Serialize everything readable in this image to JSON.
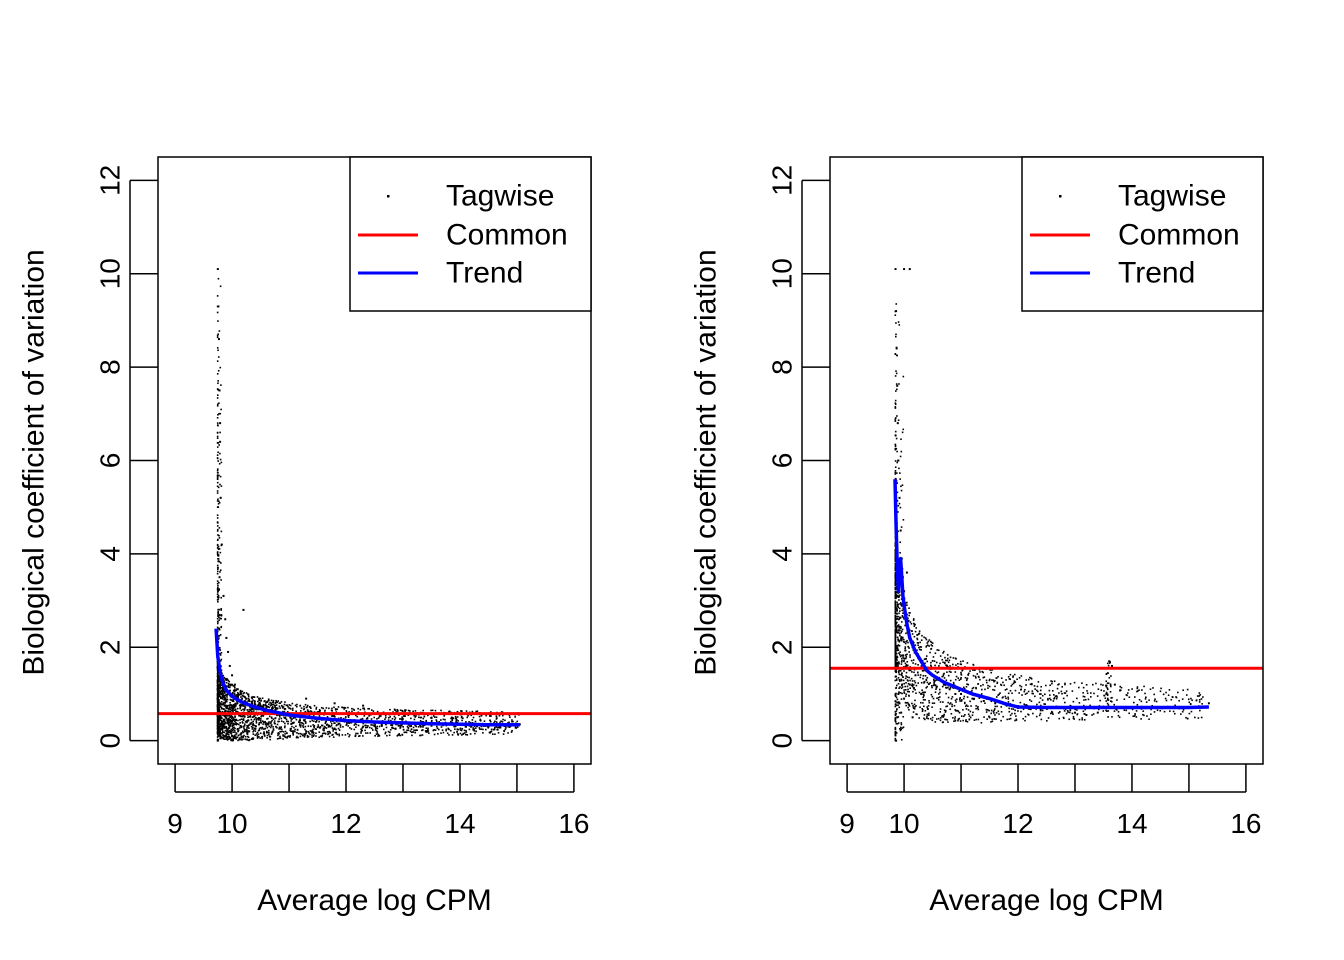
{
  "chart_data": [
    {
      "type": "scatter",
      "xlabel": "Average log CPM",
      "ylabel": "Biological coefficient of variation",
      "xlim": [
        8.7,
        16.3
      ],
      "ylim": [
        -0.5,
        12.5
      ],
      "xticks": [
        "9",
        "10",
        "12",
        "14",
        "16"
      ],
      "xtick_values": [
        9,
        10,
        12,
        14,
        16
      ],
      "xticks_minor": [
        11,
        13,
        15
      ],
      "yticks": [
        "0",
        "2",
        "4",
        "6",
        "8",
        "10",
        "12"
      ],
      "ytick_values": [
        0,
        2,
        4,
        6,
        8,
        10,
        12
      ],
      "legend": {
        "placement": "top-right",
        "entries": [
          {
            "label": "Tagwise",
            "kind": "point",
            "color": "#000000"
          },
          {
            "label": "Common",
            "kind": "line",
            "color": "#ff0000"
          },
          {
            "label": "Trend",
            "kind": "line",
            "color": "#0000ff"
          }
        ]
      },
      "series": [
        {
          "name": "Tagwise",
          "kind": "points",
          "color": "#000000",
          "x": [
            9.75,
            9.76,
            9.77,
            9.78,
            9.79,
            9.8,
            9.82,
            9.85,
            9.88,
            9.9,
            9.93,
            9.96,
            10.0,
            10.05,
            10.1,
            10.15,
            10.2,
            10.25,
            10.3,
            10.35,
            10.4,
            10.45,
            10.5,
            10.55,
            10.6,
            10.7,
            10.8,
            10.9,
            11.0,
            11.1,
            11.2,
            11.3,
            11.45,
            11.6,
            11.8,
            12.0,
            12.2,
            12.3,
            12.5,
            12.7,
            12.9,
            13.1,
            13.3,
            13.5,
            13.7,
            13.9,
            14.1,
            14.3,
            14.5,
            14.7,
            14.9,
            15.05,
            9.75,
            9.76,
            9.78,
            9.8,
            9.84,
            9.9,
            9.95,
            10.0,
            10.1,
            10.2,
            10.3,
            10.2,
            11.3,
            11.8,
            12.3,
            9.76,
            9.77,
            9.78,
            9.79
          ],
          "y": [
            10.1,
            9.3,
            8.6,
            7.5,
            6.4,
            5.2,
            4.2,
            3.1,
            2.6,
            2.2,
            1.9,
            1.6,
            1.4,
            1.2,
            1.1,
            1.0,
            0.95,
            0.9,
            0.85,
            0.8,
            0.78,
            0.75,
            0.72,
            0.7,
            0.68,
            0.65,
            0.6,
            0.58,
            0.55,
            0.52,
            0.5,
            0.9,
            0.48,
            0.45,
            0.8,
            0.42,
            0.4,
            0.75,
            0.38,
            0.35,
            0.36,
            0.34,
            0.33,
            0.32,
            0.33,
            0.31,
            0.3,
            0.31,
            0.3,
            0.3,
            0.32,
            0.35,
            0.0,
            0.1,
            0.2,
            0.05,
            0.3,
            0.15,
            0.2,
            0.1,
            0.25,
            0.3,
            0.2,
            2.8,
            0.2,
            0.25,
            0.3,
            1.2,
            2.4,
            3.5,
            6.8
          ]
        },
        {
          "name": "Common",
          "kind": "hline",
          "color": "#ff0000",
          "y": 0.58
        },
        {
          "name": "Trend",
          "kind": "line",
          "color": "#0000ff",
          "x": [
            9.72,
            9.75,
            9.8,
            9.85,
            9.9,
            10.0,
            10.1,
            10.2,
            10.4,
            10.6,
            10.8,
            11.0,
            11.5,
            12.0,
            12.5,
            13.0,
            13.5,
            14.0,
            14.5,
            15.05
          ],
          "y": [
            2.4,
            1.8,
            1.4,
            1.2,
            1.08,
            0.95,
            0.87,
            0.81,
            0.72,
            0.65,
            0.6,
            0.55,
            0.48,
            0.43,
            0.4,
            0.38,
            0.36,
            0.35,
            0.34,
            0.34
          ]
        }
      ]
    },
    {
      "type": "scatter",
      "xlabel": "Average log CPM",
      "ylabel": "Biological coefficient of variation",
      "xlim": [
        8.7,
        16.3
      ],
      "ylim": [
        -0.5,
        12.5
      ],
      "xticks": [
        "9",
        "10",
        "12",
        "14",
        "16"
      ],
      "xtick_values": [
        9,
        10,
        12,
        14,
        16
      ],
      "xticks_minor": [
        11,
        13,
        15
      ],
      "yticks": [
        "0",
        "2",
        "4",
        "6",
        "8",
        "10",
        "12"
      ],
      "ytick_values": [
        0,
        2,
        4,
        6,
        8,
        10,
        12
      ],
      "legend": {
        "placement": "top-right",
        "entries": [
          {
            "label": "Tagwise",
            "kind": "point",
            "color": "#000000"
          },
          {
            "label": "Common",
            "kind": "line",
            "color": "#ff0000"
          },
          {
            "label": "Trend",
            "kind": "line",
            "color": "#0000ff"
          }
        ]
      },
      "series": [
        {
          "name": "Tagwise",
          "kind": "points",
          "color": "#000000",
          "x": [
            9.85,
            9.86,
            9.87,
            9.88,
            9.89,
            9.9,
            9.92,
            9.94,
            9.96,
            9.98,
            10.0,
            10.02,
            10.05,
            10.08,
            10.1,
            10.15,
            10.2,
            10.25,
            10.3,
            10.35,
            10.4,
            10.5,
            10.6,
            10.7,
            10.8,
            10.9,
            11.0,
            11.2,
            11.4,
            11.6,
            11.8,
            12.0,
            12.2,
            12.4,
            12.6,
            12.8,
            13.0,
            13.2,
            13.4,
            13.55,
            13.6,
            13.65,
            13.7,
            14.0,
            14.5,
            15.0,
            15.35,
            9.86,
            9.88,
            9.9,
            9.92,
            9.95,
            10.0,
            10.1,
            10.15,
            10.2,
            10.3,
            10.0,
            10.1,
            10.05
          ],
          "y": [
            10.1,
            9.2,
            8.4,
            7.6,
            6.8,
            6.0,
            5.2,
            4.5,
            3.9,
            3.5,
            3.2,
            2.9,
            2.6,
            2.4,
            2.2,
            2.0,
            1.9,
            1.8,
            1.7,
            1.6,
            1.5,
            1.4,
            1.3,
            1.2,
            1.1,
            1.0,
            1.0,
            0.9,
            0.85,
            0.8,
            0.75,
            0.7,
            0.68,
            0.65,
            0.6,
            0.7,
            0.6,
            0.55,
            0.6,
            1.0,
            1.7,
            1.6,
            1.2,
            0.7,
            0.7,
            0.7,
            0.8,
            0.0,
            0.5,
            1.0,
            0.8,
            0.6,
            0.9,
            1.2,
            0.5,
            1.4,
            1.0,
            10.1,
            10.1,
            3.6
          ],
          "note_outlier_cluster": "13.6-1.7"
        },
        {
          "name": "Common",
          "kind": "hline",
          "color": "#ff0000",
          "y": 1.55
        },
        {
          "name": "Trend",
          "kind": "line",
          "color": "#0000ff",
          "x": [
            9.84,
            9.86,
            9.88,
            9.9,
            9.92,
            9.94,
            9.96,
            9.98,
            10.0,
            10.05,
            10.1,
            10.2,
            10.3,
            10.4,
            10.5,
            10.7,
            10.9,
            11.2,
            11.5,
            11.8,
            12.0,
            12.5,
            13.0,
            13.5,
            14.0,
            14.5,
            15.0,
            15.35
          ],
          "y": [
            5.6,
            4.6,
            3.8,
            3.2,
            3.6,
            3.9,
            3.5,
            3.1,
            2.9,
            2.5,
            2.2,
            1.9,
            1.7,
            1.5,
            1.4,
            1.25,
            1.15,
            1.0,
            0.9,
            0.78,
            0.72,
            0.71,
            0.71,
            0.71,
            0.71,
            0.71,
            0.71,
            0.72
          ]
        }
      ]
    }
  ]
}
